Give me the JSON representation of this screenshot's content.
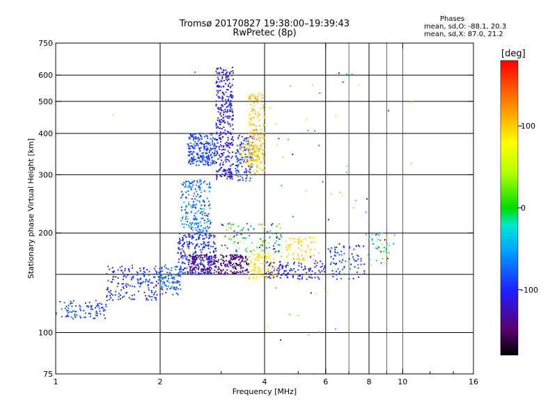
{
  "header": {
    "title_line1": "Tromsø 20170827 19:38:00–19:39:43",
    "title_line2": "RwPretec (8p)",
    "stats_heading": "Phases",
    "stats_o": "mean, sd,O: -88.1, 20.3",
    "stats_x": "mean, sd,X: 87.0, 21.2"
  },
  "colorbar": {
    "title": "[deg]",
    "range": [
      -180,
      180
    ],
    "ticks": [
      100,
      0,
      -100
    ]
  },
  "chart_data": {
    "type": "scatter",
    "title": "Tromsø 20170827 19:38:00–19:39:43",
    "subtitle": "RwPretec (8p)",
    "xlabel": "Frequency [MHz]",
    "ylabel": "Stationary phase Virtual Height [km]",
    "x_scale": "log",
    "y_scale": "log",
    "xlim": [
      1,
      16
    ],
    "ylim": [
      75,
      750
    ],
    "x_ticks": [
      1,
      2,
      4,
      6,
      8,
      10,
      16
    ],
    "x_gridlines": [
      2,
      4,
      6,
      8
    ],
    "x_minor_gridlines": [
      7,
      9,
      10
    ],
    "y_ticks": [
      75,
      100,
      200,
      300,
      400,
      500,
      600,
      750
    ],
    "y_gridlines": [
      100,
      150,
      200,
      300,
      400,
      500,
      600
    ],
    "color_variable": "phase [deg]",
    "clusters": [
      {
        "f": [
          1.0,
          1.4
        ],
        "h": [
          110,
          125
        ],
        "phase": [
          -100,
          -70
        ],
        "n": 90
      },
      {
        "f": [
          1.4,
          2.0
        ],
        "h": [
          125,
          160
        ],
        "phase": [
          -110,
          -75
        ],
        "n": 170
      },
      {
        "f": [
          2.0,
          2.3
        ],
        "h": [
          130,
          160
        ],
        "phase": [
          -100,
          -55
        ],
        "n": 90
      },
      {
        "f": [
          2.25,
          2.9
        ],
        "h": [
          150,
          200
        ],
        "phase": [
          -120,
          -70
        ],
        "n": 260
      },
      {
        "f": [
          2.4,
          3.6
        ],
        "h": [
          150,
          172
        ],
        "phase": [
          -160,
          -120
        ],
        "n": 260
      },
      {
        "f": [
          2.3,
          2.8
        ],
        "h": [
          200,
          290
        ],
        "phase": [
          -100,
          -35
        ],
        "n": 200
      },
      {
        "f": [
          2.4,
          2.9
        ],
        "h": [
          320,
          400
        ],
        "phase": [
          -110,
          -65
        ],
        "n": 230
      },
      {
        "f": [
          2.9,
          3.25
        ],
        "h": [
          290,
          640
        ],
        "phase": [
          -130,
          -85
        ],
        "n": 340
      },
      {
        "f": [
          3.3,
          3.7
        ],
        "h": [
          285,
          400
        ],
        "phase": [
          -110,
          -70
        ],
        "n": 120
      },
      {
        "f": [
          3.6,
          4.0
        ],
        "h": [
          300,
          530
        ],
        "phase": [
          90,
          125
        ],
        "n": 160
      },
      {
        "f": [
          3.4,
          3.9
        ],
        "h": [
          320,
          370
        ],
        "phase": [
          80,
          115
        ],
        "n": 60
      },
      {
        "f": [
          3.0,
          4.5
        ],
        "h": [
          175,
          215
        ],
        "phase": [
          -110,
          60
        ],
        "n": 110
      },
      {
        "f": [
          4.0,
          6.0
        ],
        "h": [
          145,
          165
        ],
        "phase": [
          -120,
          -90
        ],
        "n": 120
      },
      {
        "f": [
          3.6,
          4.3
        ],
        "h": [
          145,
          175
        ],
        "phase": [
          75,
          105
        ],
        "n": 100
      },
      {
        "f": [
          4.6,
          5.6
        ],
        "h": [
          165,
          195
        ],
        "phase": [
          80,
          110
        ],
        "n": 60
      },
      {
        "f": [
          6.1,
          7.8
        ],
        "h": [
          145,
          185
        ],
        "phase": [
          -120,
          -60
        ],
        "n": 80
      },
      {
        "f": [
          7.8,
          9.5
        ],
        "h": [
          160,
          200
        ],
        "phase": [
          -140,
          70
        ],
        "n": 40
      },
      {
        "f": [
          4.0,
          8.0
        ],
        "h": [
          95,
          620
        ],
        "phase": [
          -150,
          100
        ],
        "n": 50
      }
    ],
    "isolated_points": [
      {
        "f": 1.46,
        "h": 455,
        "phase": 95
      },
      {
        "f": 2.52,
        "h": 612,
        "phase": -60
      },
      {
        "f": 6.9,
        "h": 605,
        "phase": -40
      },
      {
        "f": 9.1,
        "h": 468,
        "phase": -90
      },
      {
        "f": 10.6,
        "h": 498,
        "phase": 110
      },
      {
        "f": 10.6,
        "h": 325,
        "phase": 100
      },
      {
        "f": 4.45,
        "h": 95,
        "phase": -100
      },
      {
        "f": 7.0,
        "h": 106,
        "phase": 95
      },
      {
        "f": 6.6,
        "h": 265,
        "phase": 30
      },
      {
        "f": 6.7,
        "h": 260,
        "phase": 60
      },
      {
        "f": 6.9,
        "h": 305,
        "phase": -20
      },
      {
        "f": 5.6,
        "h": 75,
        "phase": 105
      }
    ]
  }
}
